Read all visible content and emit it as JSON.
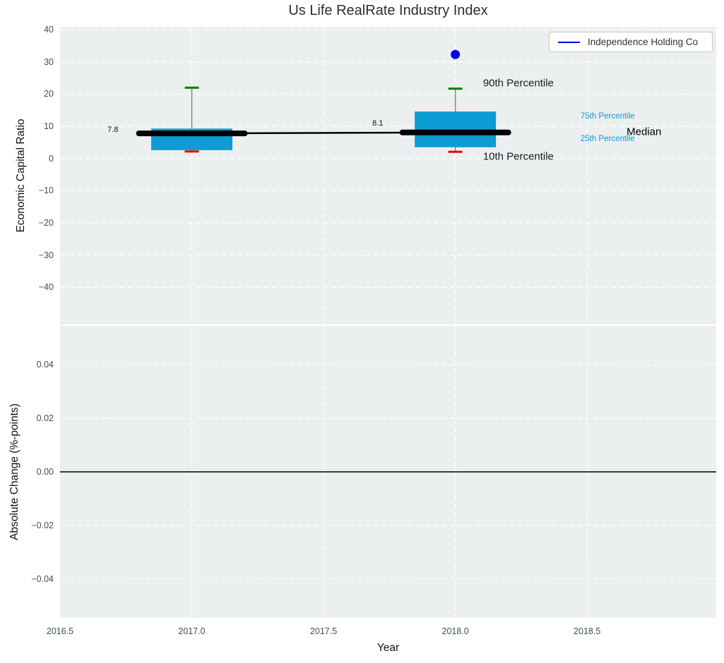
{
  "title": "Us Life RealRate Industry Index",
  "xlabel": "Year",
  "legend": {
    "label": "Independence Holding Co",
    "line_color": "#0000e8"
  },
  "colors": {
    "plot_bg": "#eceff0",
    "grid": "#ffffff",
    "tick": "#3d4e63",
    "box_fill": "#0c9cd3",
    "median": "#000000",
    "p90_cap": "#007d00",
    "p10_cap": "#e60000",
    "whisker": "#808080",
    "company": "#0000e8",
    "zero_line": "#000000"
  },
  "chart_data": [
    {
      "type": "box",
      "ylabel": "Economic Capital Ratio",
      "xlim": [
        2016.5,
        2018.99
      ],
      "ylim": [
        -51.5,
        40.9
      ],
      "grid": true,
      "xticks": {
        "values": [
          2016.5,
          2017.0,
          2017.5,
          2018.0,
          2018.5
        ],
        "labels": [
          "2016.5",
          "2017.0",
          "2017.5",
          "2018.0",
          "2018.5"
        ]
      },
      "yticks": {
        "values": [
          40,
          30,
          20,
          10,
          0,
          -10,
          -20,
          -30,
          -40
        ],
        "labels": [
          "40",
          "30",
          "20",
          "10",
          "0",
          "−10",
          "−20",
          "−30",
          "−40"
        ]
      },
      "boxes": [
        {
          "x": 2017,
          "p10": 2.2,
          "q1": 2.6,
          "median": 7.8,
          "q3": 9.3,
          "p90": 22.0
        },
        {
          "x": 2018,
          "p10": 2.1,
          "q1": 3.5,
          "median": 8.1,
          "q3": 14.6,
          "p90": 21.7
        }
      ],
      "median_series": {
        "name": "Industry Median",
        "points": [
          {
            "x": 2017,
            "y": 7.8
          },
          {
            "x": 2018,
            "y": 8.1
          }
        ]
      },
      "company_series": {
        "name": "Independence Holding Co",
        "points": [
          {
            "x": 2018,
            "y": 32.3
          }
        ]
      },
      "annotations": [
        {
          "text": "7.8",
          "x": 2016.68,
          "y": 8.9,
          "size": 11,
          "color": "#111111",
          "anchor": "start"
        },
        {
          "text": "8.1",
          "x": 2017.685,
          "y": 10.9,
          "size": 11,
          "color": "#111111",
          "anchor": "start"
        },
        {
          "text": "90th Percentile",
          "x": 2018.105,
          "y": 23.4,
          "size": 15,
          "color": "#1a1a1a",
          "anchor": "start"
        },
        {
          "text": "10th Percentile",
          "x": 2018.105,
          "y": 0.6,
          "size": 15,
          "color": "#1a1a1a",
          "anchor": "start"
        },
        {
          "text": "75th Percentile",
          "x": 2018.475,
          "y": 13.1,
          "size": 11.5,
          "color": "#1499d1",
          "anchor": "start"
        },
        {
          "text": "25th Percentile",
          "x": 2018.475,
          "y": 6.1,
          "size": 11.5,
          "color": "#1499d1",
          "anchor": "start"
        },
        {
          "text": "Median",
          "x": 2018.65,
          "y": 8.3,
          "size": 15,
          "color": "#000000",
          "anchor": "start"
        }
      ]
    },
    {
      "type": "line",
      "ylabel": "Absolute Change (%-points)",
      "xlim": [
        2016.5,
        2018.99
      ],
      "ylim": [
        -0.0545,
        0.0545
      ],
      "grid": true,
      "xticks": {
        "values": [
          2016.5,
          2017.0,
          2017.5,
          2018.0,
          2018.5
        ],
        "labels": [
          "2016.5",
          "2017.0",
          "2017.5",
          "2018.0",
          "2018.5"
        ]
      },
      "yticks": {
        "values": [
          0.04,
          0.02,
          0,
          -0.02,
          -0.04
        ],
        "labels": [
          "0.04",
          "0.02",
          "0.00",
          "−0.02",
          "−0.04"
        ]
      },
      "zero_line": 0,
      "series": []
    }
  ]
}
